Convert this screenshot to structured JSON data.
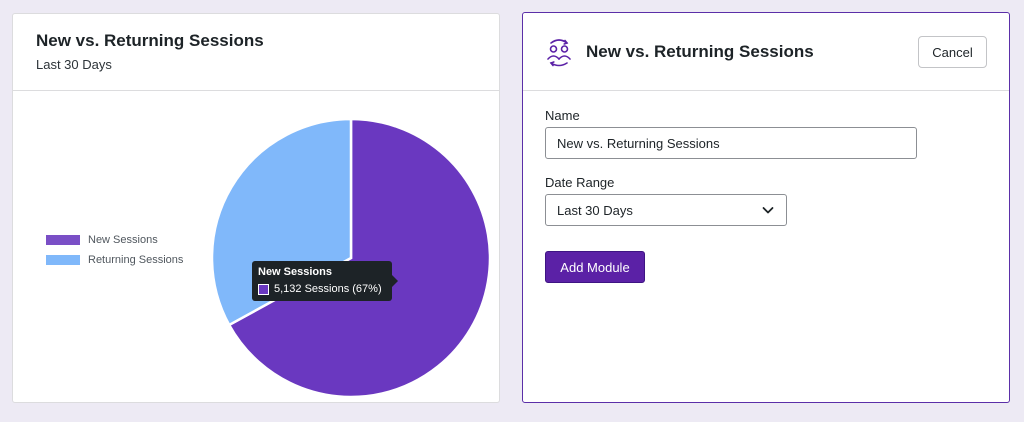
{
  "chart_card": {
    "title": "New vs. Returning Sessions",
    "subtitle": "Last 30 Days"
  },
  "chart_data": {
    "type": "pie",
    "slices": [
      {
        "label": "New Sessions",
        "percent": 67,
        "color": "#6a38c0"
      },
      {
        "label": "Returning Sessions",
        "percent": 33,
        "color": "#80b8fa"
      }
    ],
    "legend_position": "left"
  },
  "tooltip": {
    "title": "New Sessions",
    "value": "5,132 Sessions (67%)"
  },
  "form": {
    "icon": "users-sync-icon",
    "title": "New vs. Returning Sessions",
    "cancel_label": "Cancel",
    "name_label": "Name",
    "name_value": "New vs. Returning Sessions",
    "date_range_label": "Date Range",
    "date_range_value": "Last 30 Days",
    "submit_label": "Add Module"
  },
  "colors": {
    "accent": "#5b21a6",
    "new_sessions": "#6a38c0",
    "returning_sessions": "#80b8fa"
  }
}
